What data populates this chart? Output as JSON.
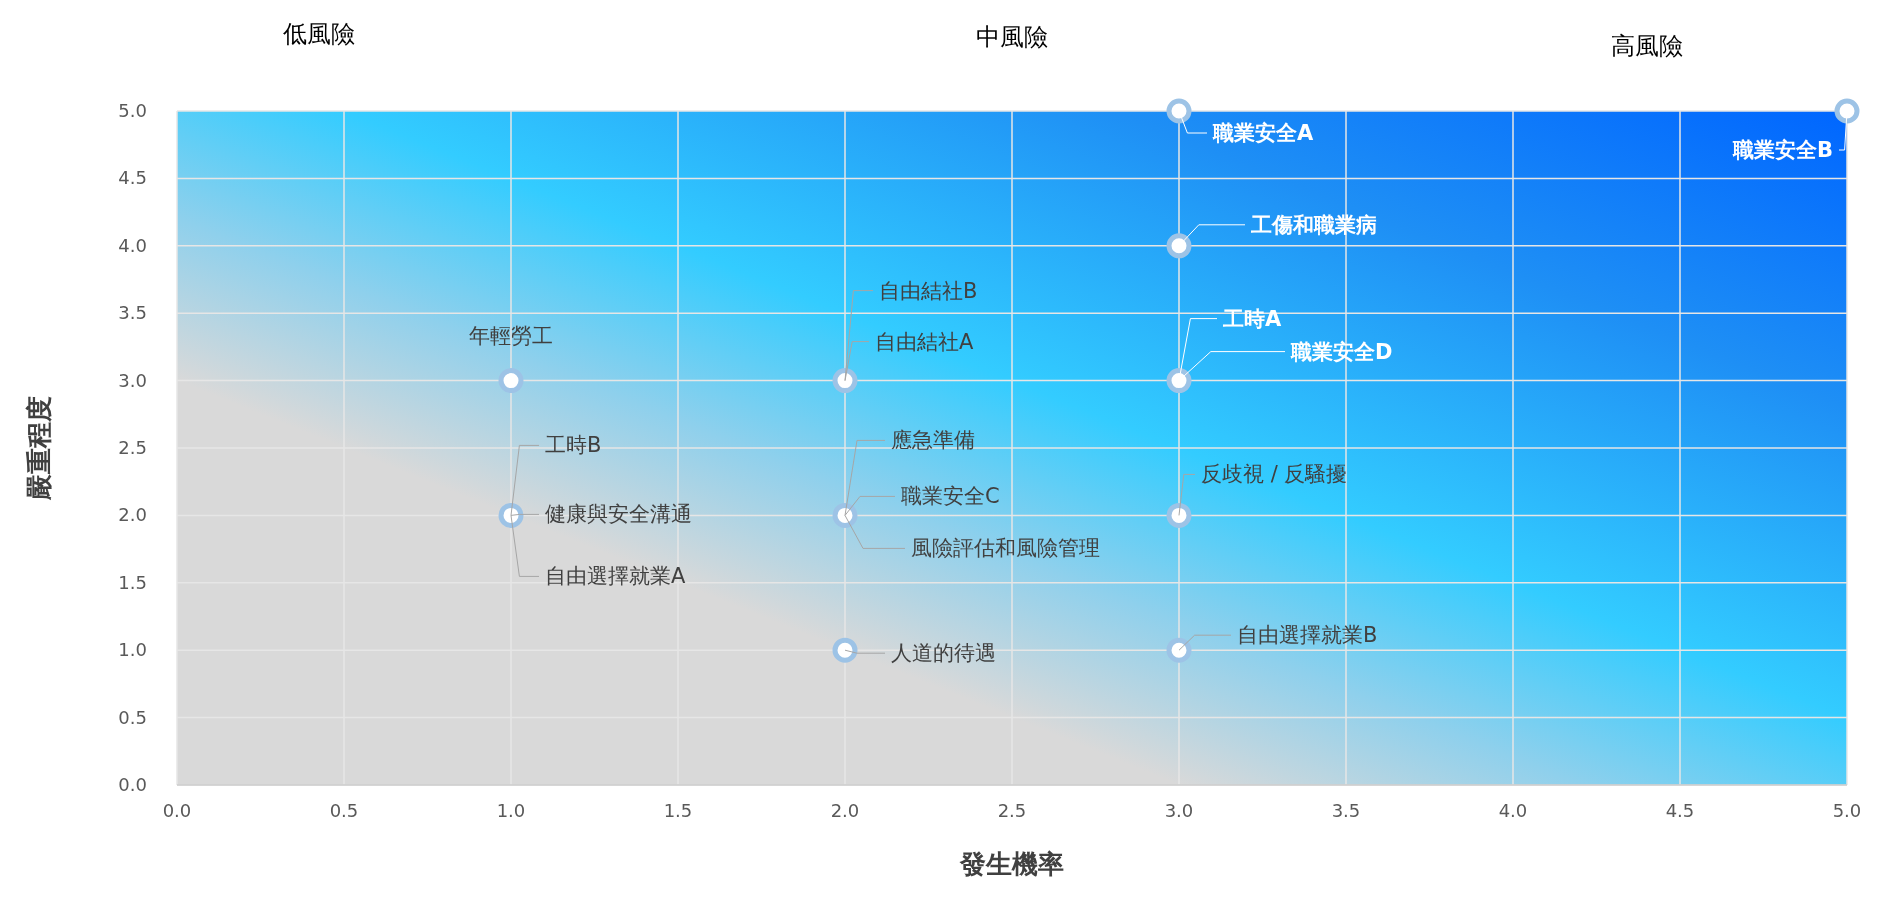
{
  "chart_data": {
    "type": "scatter",
    "xlabel": "發生機率",
    "ylabel": "嚴重程度",
    "xlim": [
      0,
      5
    ],
    "ylim": [
      0,
      5
    ],
    "xticks": [
      {
        "value": 0,
        "label": "0.0"
      },
      {
        "value": 0.5,
        "label": "0.5"
      },
      {
        "value": 1,
        "label": "1.0"
      },
      {
        "value": 1.5,
        "label": "1.5"
      },
      {
        "value": 2,
        "label": "2.0"
      },
      {
        "value": 2.5,
        "label": "2.5"
      },
      {
        "value": 3,
        "label": "3.0"
      },
      {
        "value": 3.5,
        "label": "3.5"
      },
      {
        "value": 4,
        "label": "4.0"
      },
      {
        "value": 4.5,
        "label": "4.5"
      },
      {
        "value": 5,
        "label": "5.0"
      }
    ],
    "yticks": [
      {
        "value": 0,
        "label": "0.0"
      },
      {
        "value": 0.5,
        "label": "0.5"
      },
      {
        "value": 1,
        "label": "1.0"
      },
      {
        "value": 1.5,
        "label": "1.5"
      },
      {
        "value": 2,
        "label": "2.0"
      },
      {
        "value": 2.5,
        "label": "2.5"
      },
      {
        "value": 3,
        "label": "3.0"
      },
      {
        "value": 3.5,
        "label": "3.5"
      },
      {
        "value": 4,
        "label": "4.0"
      },
      {
        "value": 4.5,
        "label": "4.5"
      },
      {
        "value": 5,
        "label": "5.0"
      }
    ],
    "grid": true,
    "marker": "circle",
    "series": [
      {
        "color": "#9dc3e6",
        "x": [
          1,
          1,
          2,
          2,
          2,
          3,
          3,
          3,
          3,
          3,
          5
        ],
        "values": [
          3,
          2,
          3,
          2,
          1,
          5,
          4,
          3,
          2,
          1,
          5
        ]
      }
    ],
    "annotations": [
      "低風險",
      "中風險",
      "高風險",
      {
        "text": "年輕勞工",
        "x": 1,
        "y": 3
      },
      {
        "text": "工時B",
        "x": 1,
        "y": 2
      },
      {
        "text": "健康與安全溝通",
        "x": 1,
        "y": 2
      },
      {
        "text": "自由選擇就業A",
        "x": 1,
        "y": 2
      },
      {
        "text": "自由結社B",
        "x": 2,
        "y": 3
      },
      {
        "text": "自由結社A",
        "x": 2,
        "y": 3
      },
      {
        "text": "應急準備",
        "x": 2,
        "y": 2
      },
      {
        "text": "職業安全C",
        "x": 2,
        "y": 2
      },
      {
        "text": "風險評估和風險管理",
        "x": 2,
        "y": 2
      },
      {
        "text": "人道的待遇",
        "x": 2,
        "y": 1
      },
      {
        "text": "職業安全A",
        "x": 3,
        "y": 5
      },
      {
        "text": "工傷和職業病",
        "x": 3,
        "y": 4
      },
      {
        "text": "工時A",
        "x": 3,
        "y": 3
      },
      {
        "text": "職業安全D",
        "x": 3,
        "y": 3
      },
      {
        "text": "反歧視 / 反騷擾",
        "x": 3,
        "y": 2
      },
      {
        "text": "自由選擇就業B",
        "x": 3,
        "y": 1
      },
      {
        "text": "職業安全B",
        "x": 5,
        "y": 5
      }
    ]
  }
}
